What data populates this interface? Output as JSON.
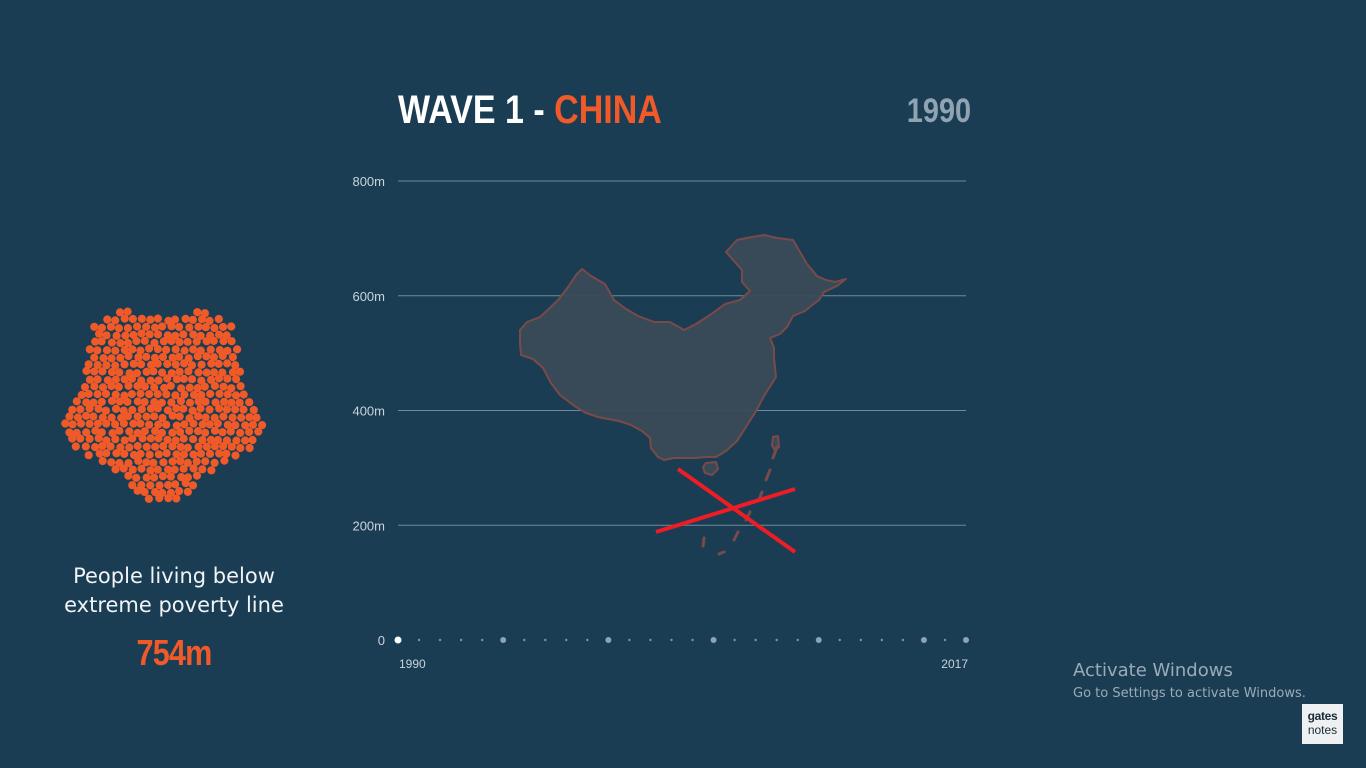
{
  "title": {
    "prefix": "WAVE 1 - ",
    "country": "CHINA"
  },
  "current_year": "1990",
  "people_panel": {
    "label_line1": "People living below",
    "label_line2": "extreme poverty line",
    "value": "754m"
  },
  "watermark": {
    "title": "Activate Windows",
    "subtitle": "Go to Settings to activate Windows."
  },
  "logo": {
    "line1": "gates",
    "line2": "notes"
  },
  "colors": {
    "background": "#1b3d53",
    "accent": "#f05a28",
    "map_fill": "#3a4a58",
    "map_stroke": "#7a4a48",
    "cross": "#ee1c25",
    "gridline": "#8fa3b2"
  },
  "chart_data": {
    "type": "line",
    "title": "WAVE 1 - CHINA",
    "xlabel": "",
    "ylabel": "",
    "ylim": [
      0,
      800
    ],
    "y_ticks": [
      {
        "value": 0,
        "label": "0"
      },
      {
        "value": 200,
        "label": "200m"
      },
      {
        "value": 400,
        "label": "400m"
      },
      {
        "value": 600,
        "label": "600m"
      },
      {
        "value": 800,
        "label": "800m"
      }
    ],
    "x_range": [
      1990,
      2017
    ],
    "x_tick_labels": [
      {
        "year": 1990,
        "label": "1990"
      },
      {
        "year": 2017,
        "label": "2017"
      }
    ],
    "timeline_years": [
      1990,
      1991,
      1992,
      1993,
      1994,
      1995,
      1996,
      1997,
      1998,
      1999,
      2000,
      2001,
      2002,
      2003,
      2004,
      2005,
      2006,
      2007,
      2008,
      2009,
      2010,
      2011,
      2012,
      2013,
      2014,
      2015,
      2016,
      2017
    ],
    "timeline_major_years": [
      1990,
      1995,
      2000,
      2005,
      2010,
      2015,
      2017
    ],
    "active_year": 1990,
    "grid": true,
    "series": []
  }
}
